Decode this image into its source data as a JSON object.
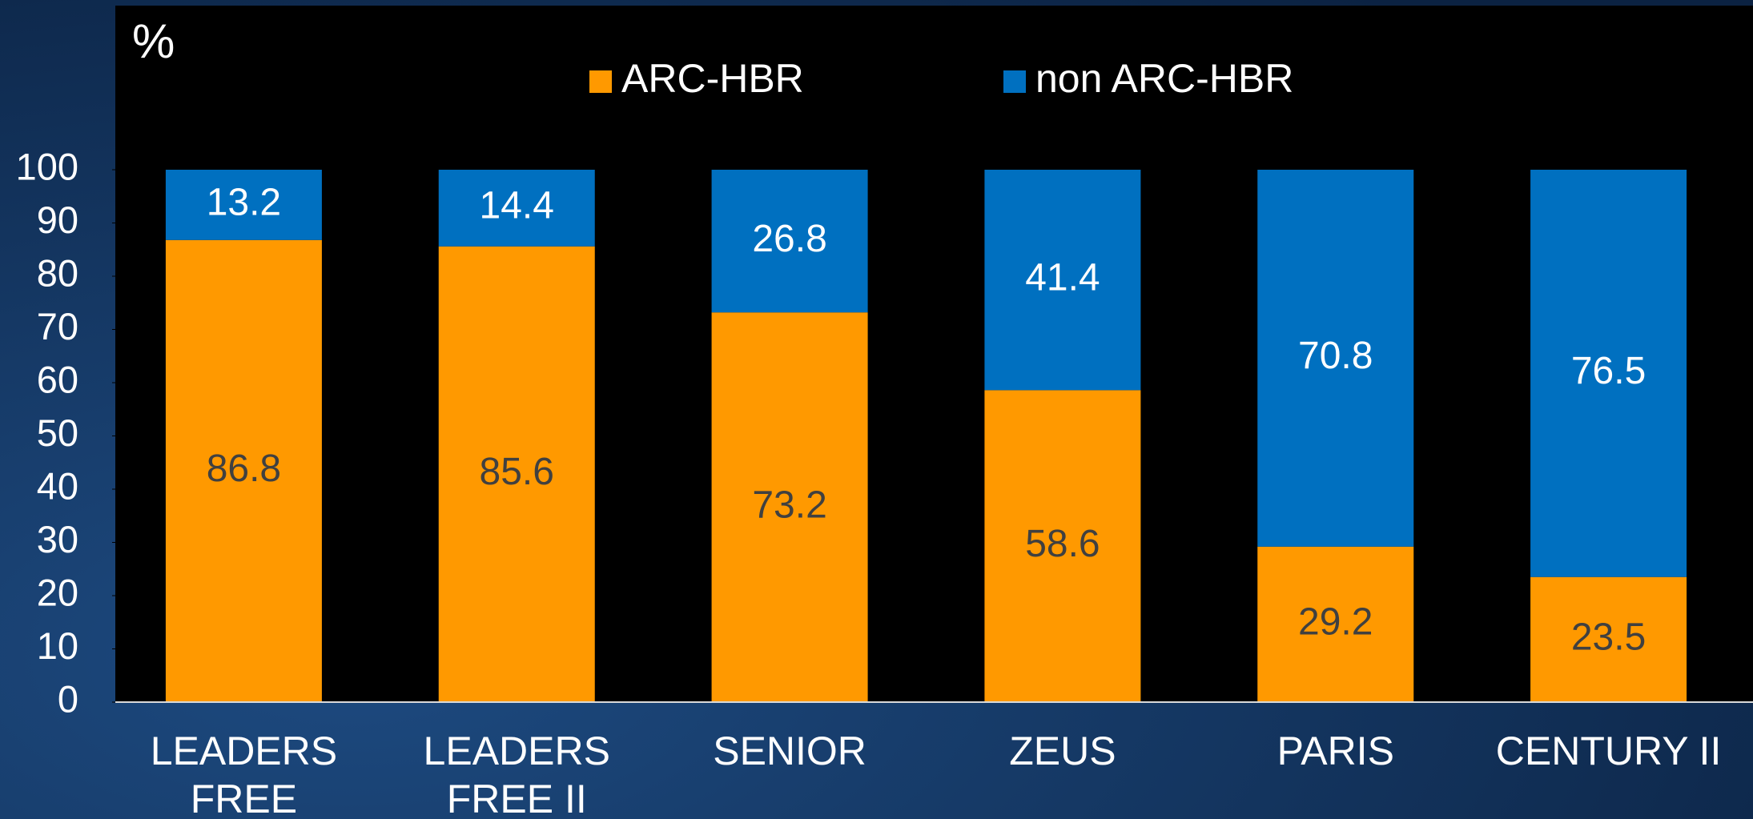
{
  "chart_data": {
    "type": "stacked_bar",
    "y_label": "%",
    "categories": [
      [
        "LEADERS",
        "FREE"
      ],
      [
        "LEADERS",
        "FREE II"
      ],
      [
        "SENIOR"
      ],
      [
        "ZEUS"
      ],
      [
        "PARIS"
      ],
      [
        "CENTURY II"
      ]
    ],
    "series": [
      {
        "name": "ARC-HBR",
        "color": "#ff9900",
        "label_color": "#404040",
        "values": [
          86.8,
          85.6,
          73.2,
          58.6,
          29.2,
          23.5
        ]
      },
      {
        "name": "non ARC-HBR",
        "color": "#0070c0",
        "label_color": "#ffffff",
        "values": [
          13.2,
          14.4,
          26.8,
          41.4,
          70.8,
          76.5
        ]
      }
    ],
    "ylim": [
      0,
      100
    ],
    "yticks": [
      0,
      10,
      20,
      30,
      40,
      50,
      60,
      70,
      80,
      90,
      100
    ]
  }
}
